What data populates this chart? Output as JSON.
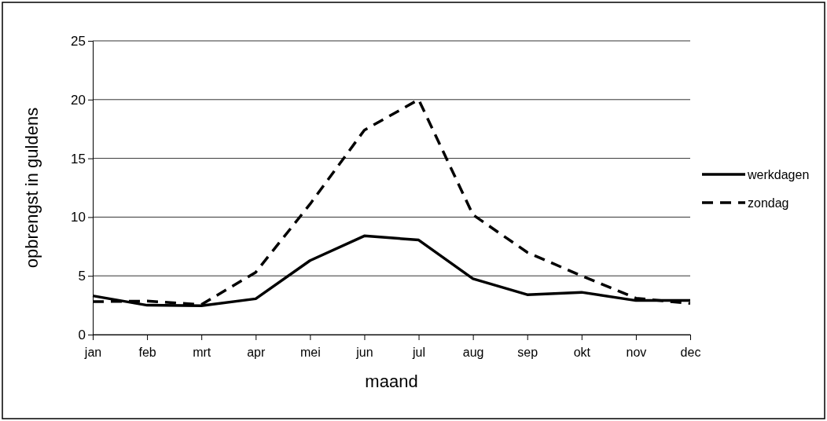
{
  "chart_data": {
    "type": "line",
    "xlabel": "maand",
    "ylabel": "opbrengst in guldens",
    "categories": [
      "jan",
      "feb",
      "mrt",
      "apr",
      "mei",
      "jun",
      "jul",
      "aug",
      "sep",
      "okt",
      "nov",
      "dec"
    ],
    "series": [
      {
        "name": "werkdagen",
        "color": "#000000",
        "line_style": "solid",
        "values": [
          3.3,
          2.5,
          2.45,
          3.05,
          6.3,
          8.4,
          8.05,
          4.75,
          3.4,
          3.6,
          2.9,
          2.9
        ]
      },
      {
        "name": "zondag",
        "color": "#000000",
        "line_style": "dashed",
        "values": [
          2.8,
          2.85,
          2.55,
          5.3,
          11.1,
          17.4,
          20,
          10.2,
          7,
          5,
          3.1,
          2.65
        ]
      }
    ],
    "ylim": [
      0,
      25
    ],
    "yticks": [
      0,
      5,
      10,
      15,
      20,
      25
    ],
    "grid": "y",
    "legend": "right",
    "marker": "none"
  }
}
